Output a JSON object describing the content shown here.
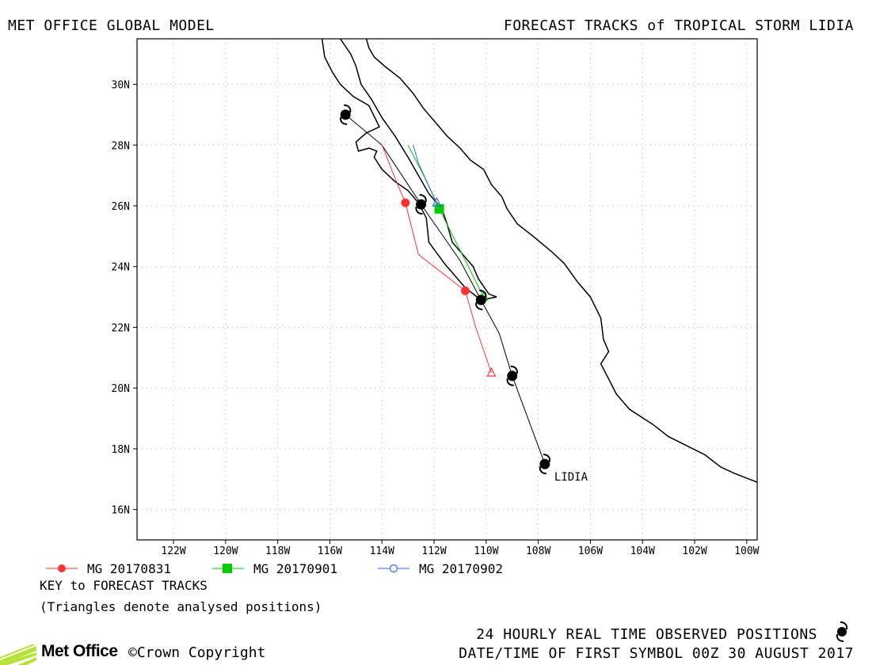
{
  "header": {
    "left_title": "MET OFFICE GLOBAL MODEL",
    "right_title": "FORECAST TRACKS of TROPICAL STORM LIDIA"
  },
  "map": {
    "lon_range": [
      -123.4,
      -99.6
    ],
    "lat_range": [
      15.0,
      31.5
    ],
    "lon_ticks": [
      -122,
      -120,
      -118,
      -116,
      -114,
      -112,
      -110,
      -108,
      -106,
      -104,
      -102,
      -100
    ],
    "lon_tick_labels": [
      "122W",
      "120W",
      "118W",
      "116W",
      "114W",
      "112W",
      "110W",
      "108W",
      "106W",
      "104W",
      "102W",
      "100W"
    ],
    "lat_ticks": [
      16,
      18,
      20,
      22,
      24,
      26,
      28,
      30
    ],
    "lat_tick_labels": [
      "16N",
      "18N",
      "20N",
      "22N",
      "24N",
      "26N",
      "28N",
      "30N"
    ],
    "grid": "dotted",
    "colors": {
      "coast": "#000000",
      "grid": "#b0b0b0",
      "frame": "#000000"
    }
  },
  "storm": {
    "name_label": "LIDIA",
    "observed_track": [
      [
        -107.75,
        17.5
      ],
      [
        -109.0,
        20.4
      ],
      [
        -109.5,
        21.8
      ],
      [
        -110.2,
        22.9
      ],
      [
        -111.0,
        24.2
      ],
      [
        -112.5,
        26.05
      ],
      [
        -114.0,
        28.0
      ],
      [
        -115.4,
        29.0
      ]
    ],
    "observed_symbols": [
      [
        -107.75,
        17.5
      ],
      [
        -109.0,
        20.4
      ],
      [
        -110.2,
        22.9
      ],
      [
        -112.5,
        26.05
      ],
      [
        -115.4,
        29.0
      ]
    ],
    "symbol_icon": "hurricane-icon"
  },
  "forecast_tracks": [
    {
      "name": "MG 20170831",
      "color": "#ff3333",
      "marker": "filled-circle",
      "track": [
        [
          -109.8,
          20.5
        ],
        [
          -110.4,
          22.0
        ],
        [
          -110.8,
          23.2
        ],
        [
          -112.6,
          24.4
        ],
        [
          -113.1,
          26.1
        ],
        [
          -113.4,
          26.7
        ],
        [
          -114.0,
          28.0
        ]
      ],
      "markers": [
        [
          -110.8,
          23.2
        ],
        [
          -113.1,
          26.1
        ]
      ],
      "analysed_start": [
        -109.8,
        20.5
      ]
    },
    {
      "name": "MG 20170901",
      "color": "#00cc00",
      "marker": "filled-square",
      "track": [
        [
          -110.1,
          23.0
        ],
        [
          -111.8,
          25.9
        ],
        [
          -112.4,
          27.0
        ],
        [
          -113.0,
          28.0
        ]
      ],
      "markers": [
        [
          -111.8,
          25.9
        ]
      ],
      "analysed_start": [
        -110.1,
        23.0
      ]
    },
    {
      "name": "MG 20170902",
      "color": "#3366ff",
      "marker": "open-circle",
      "track": [
        [
          -111.9,
          26.1
        ],
        [
          -112.6,
          27.4
        ],
        [
          -112.8,
          28.0
        ]
      ],
      "markers": [],
      "analysed_start": [
        -111.9,
        26.1
      ]
    }
  ],
  "key": {
    "title": "KEY to FORECAST TRACKS",
    "note": "(Triangles denote analysed positions)"
  },
  "footer": {
    "observed_line": "24 HOURLY REAL TIME OBSERVED POSITIONS",
    "datetime_line": "DATE/TIME OF FIRST SYMBOL 00Z 30 AUGUST 2017",
    "logo_text": "Met Office",
    "copyright": "Crown Copyright",
    "copyright_symbol": "©"
  }
}
